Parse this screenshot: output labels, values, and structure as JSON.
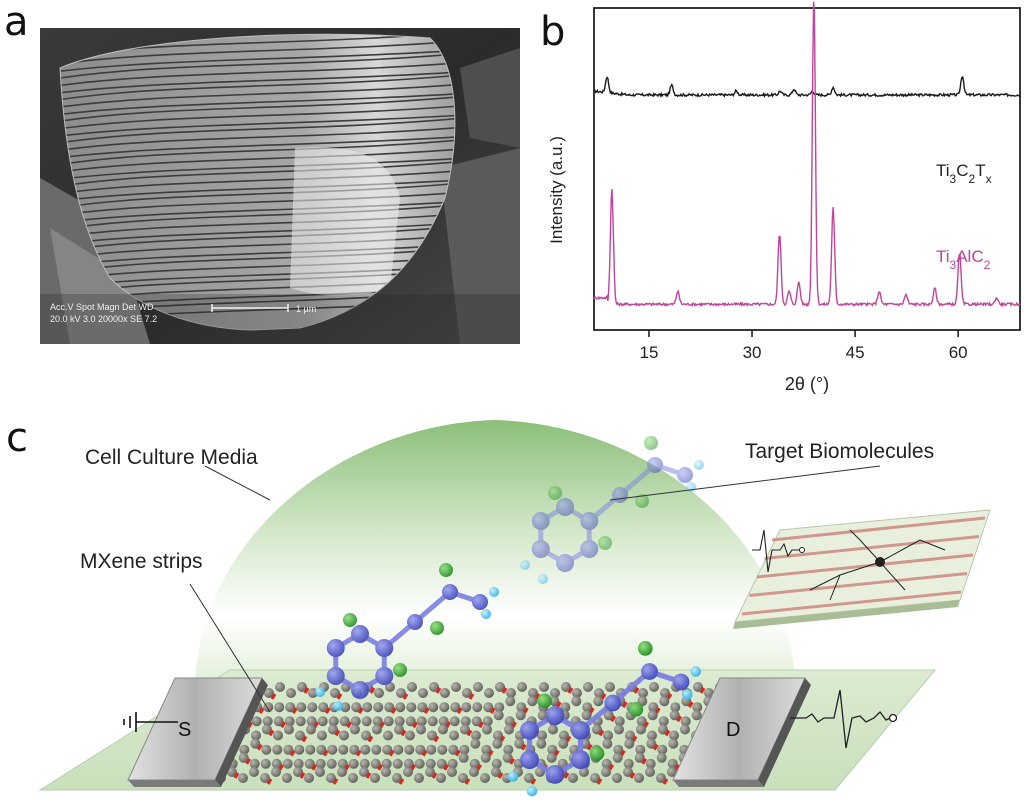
{
  "panels": {
    "a": "a",
    "b": "b",
    "c": "c"
  },
  "sem": {
    "info_header": "Acc.V  Spot Magn   Det  WD",
    "info_values": "20.0 kV 3.0  20000x  SE   7.2",
    "scale_label": "1 μm"
  },
  "chart_data": {
    "type": "line",
    "xlabel": "2θ (°)",
    "ylabel": "Intensity (a.u.)",
    "xlim": [
      7,
      69
    ],
    "xticks": [
      15,
      30,
      45,
      60
    ],
    "series": [
      {
        "name": "Ti3C2Tx",
        "color": "#1a1a1a",
        "baseline": 0.73,
        "peaks": [
          {
            "x": 8.9,
            "h": 0.05
          },
          {
            "x": 18.3,
            "h": 0.03
          },
          {
            "x": 27.7,
            "h": 0.012
          },
          {
            "x": 34.1,
            "h": 0.012
          },
          {
            "x": 36.1,
            "h": 0.018
          },
          {
            "x": 38.8,
            "h": 0.012
          },
          {
            "x": 41.8,
            "h": 0.024
          },
          {
            "x": 60.6,
            "h": 0.06
          }
        ]
      },
      {
        "name": "Ti3AlC2",
        "color": "#c0459a",
        "baseline": 0.08,
        "peaks": [
          {
            "x": 9.6,
            "h": 0.36
          },
          {
            "x": 19.2,
            "h": 0.04
          },
          {
            "x": 34.0,
            "h": 0.22
          },
          {
            "x": 35.4,
            "h": 0.04
          },
          {
            "x": 36.8,
            "h": 0.07
          },
          {
            "x": 39.0,
            "h": 0.96
          },
          {
            "x": 41.8,
            "h": 0.3
          },
          {
            "x": 48.5,
            "h": 0.04
          },
          {
            "x": 52.4,
            "h": 0.03
          },
          {
            "x": 56.6,
            "h": 0.05
          },
          {
            "x": 60.2,
            "h": 0.16
          },
          {
            "x": 65.6,
            "h": 0.02
          }
        ]
      }
    ],
    "legend": {
      "ti3c2tx": {
        "base": "Ti",
        "s1": "3",
        "mid": "C",
        "s2": "2",
        "tail": "T",
        "s3": "x"
      },
      "ti3alc2": {
        "base": "Ti",
        "s1": "3",
        "mid": "AlC",
        "s2": "2"
      }
    }
  },
  "device": {
    "media_label": "Cell Culture Media",
    "target_label": "Target Biomolecules",
    "strips_label": "MXene strips",
    "source_label": "S",
    "drain_label": "D"
  }
}
